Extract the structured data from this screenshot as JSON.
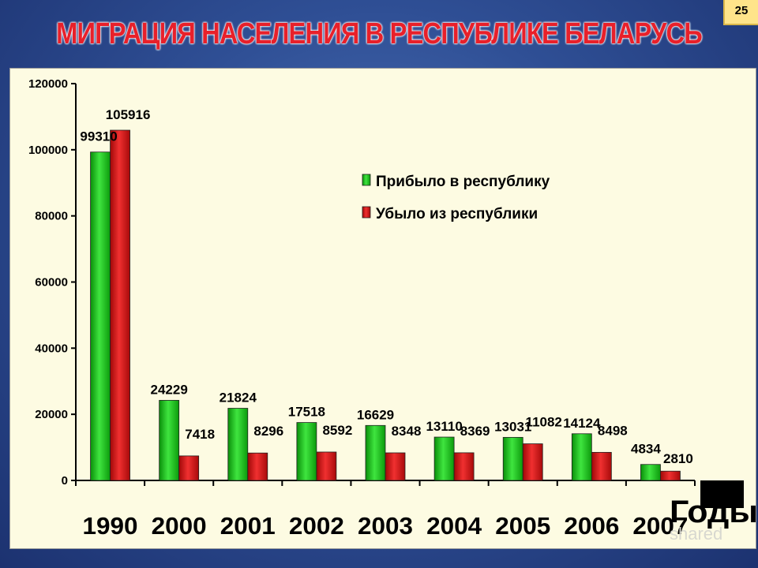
{
  "slide": {
    "title": "МИГРАЦИЯ НАСЕЛЕНИЯ В РЕСПУБЛИКЕ БЕЛАРУСЬ",
    "page_number": "25",
    "watermark": "shared"
  },
  "colors": {
    "arrived": "#19c519",
    "departed": "#d81414",
    "title": "#e8202a",
    "panel": "#fdfbe2",
    "background": "#2f4f95"
  },
  "chart_data": {
    "type": "bar",
    "title": "",
    "xlabel": "Годы",
    "ylabel": "",
    "ylim": [
      0,
      120000
    ],
    "yticks": [
      "0",
      "20000",
      "40000",
      "60000",
      "80000",
      "100000",
      "120000"
    ],
    "categories": [
      "1990",
      "2000",
      "2001",
      "2002",
      "2003",
      "2004",
      "2005",
      "2006",
      "2007"
    ],
    "series": [
      {
        "name": "Прибыло в республику",
        "values": [
          99310,
          24229,
          21824,
          17518,
          16629,
          13110,
          13031,
          14124,
          4834
        ]
      },
      {
        "name": "Убыло из республики",
        "values": [
          105916,
          7418,
          8296,
          8592,
          8348,
          8369,
          11082,
          8498,
          2810
        ]
      }
    ],
    "legend": "inside-top-right",
    "grid": false
  }
}
